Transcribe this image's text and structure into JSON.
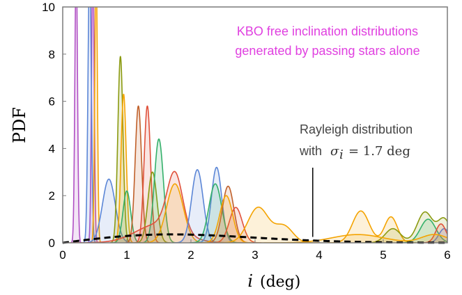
{
  "chart_data": {
    "type": "area",
    "xlabel_var": "i",
    "xlabel_unit": "(deg)",
    "ylabel": "PDF",
    "xlim": [
      0,
      6
    ],
    "ylim": [
      0,
      10
    ],
    "x_ticks": [
      0,
      1,
      2,
      3,
      4,
      5,
      6
    ],
    "y_ticks": [
      0,
      2,
      4,
      6,
      8,
      10
    ],
    "grid": false,
    "annotations": {
      "title_line1": "KBO free inclination distributions",
      "title_line2": "generated by passing stars alone",
      "title_color": "#e040e0",
      "rayleigh_line1": "Rayleigh distribution",
      "rayleigh_with": "with",
      "rayleigh_sigma": "σ",
      "rayleigh_sub": "i",
      "rayleigh_value": "= 1.7 deg",
      "rayleigh_pointer_x": 3.9
    },
    "rayleigh": {
      "sigma": 1.7,
      "color": "#000000",
      "style": "dashed"
    },
    "series": [
      {
        "color": "#b04fc4",
        "peaks": [
          [
            0.21,
            0.02,
            12
          ]
        ]
      },
      {
        "color": "#b04fc4",
        "peaks": [
          [
            0.47,
            0.02,
            12
          ]
        ]
      },
      {
        "color": "#5b86d6",
        "peaks": [
          [
            0.42,
            0.025,
            12
          ]
        ]
      },
      {
        "color": "#f4a300",
        "peaks": [
          [
            0.52,
            0.02,
            12
          ]
        ]
      },
      {
        "color": "#5b86d6",
        "peaks": [
          [
            0.72,
            0.1,
            2.7
          ]
        ]
      },
      {
        "color": "#8a9a10",
        "peaks": [
          [
            0.9,
            0.04,
            7.9
          ]
        ]
      },
      {
        "color": "#f4a300",
        "peaks": [
          [
            0.95,
            0.04,
            6.3
          ]
        ]
      },
      {
        "color": "#34b06a",
        "peaks": [
          [
            1.0,
            0.06,
            2.2
          ]
        ]
      },
      {
        "color": "#c0602a",
        "peaks": [
          [
            1.18,
            0.05,
            5.8
          ]
        ]
      },
      {
        "color": "#e0503a",
        "peaks": [
          [
            1.32,
            0.05,
            5.8
          ]
        ]
      },
      {
        "color": "#8a9a10",
        "peaks": [
          [
            1.4,
            0.07,
            3.0
          ]
        ]
      },
      {
        "color": "#34b06a",
        "peaks": [
          [
            1.5,
            0.07,
            4.4
          ]
        ]
      },
      {
        "color": "#e0503a",
        "peaks": [
          [
            1.5,
            0.35,
            0.8
          ],
          [
            1.75,
            0.12,
            2.4
          ]
        ]
      },
      {
        "color": "#f4a300",
        "peaks": [
          [
            1.75,
            0.13,
            2.5
          ]
        ]
      },
      {
        "color": "#5b86d6",
        "peaks": [
          [
            2.1,
            0.09,
            3.1
          ]
        ]
      },
      {
        "color": "#5b86d6",
        "peaks": [
          [
            2.4,
            0.08,
            3.2
          ]
        ]
      },
      {
        "color": "#34b06a",
        "peaks": [
          [
            2.38,
            0.1,
            2.5
          ]
        ]
      },
      {
        "color": "#c0602a",
        "peaks": [
          [
            2.58,
            0.09,
            2.4
          ]
        ]
      },
      {
        "color": "#e0503a",
        "peaks": [
          [
            2.7,
            0.1,
            1.5
          ]
        ]
      },
      {
        "color": "#f4a300",
        "peaks": [
          [
            2.55,
            0.1,
            2.0
          ]
        ]
      },
      {
        "color": "#f4a300",
        "peaks": [
          [
            3.05,
            0.16,
            1.5
          ],
          [
            3.45,
            0.14,
            0.7
          ]
        ]
      },
      {
        "color": "#f4a300",
        "peaks": [
          [
            4.65,
            0.13,
            1.35
          ],
          [
            5.12,
            0.1,
            1.1
          ]
        ]
      },
      {
        "color": "#8a9a10",
        "peaks": [
          [
            5.15,
            0.12,
            0.6
          ],
          [
            5.65,
            0.12,
            1.3
          ],
          [
            5.95,
            0.1,
            1.0
          ]
        ]
      },
      {
        "color": "#34b06a",
        "peaks": [
          [
            5.7,
            0.12,
            1.0
          ]
        ]
      },
      {
        "color": "#5b86d6",
        "peaks": [
          [
            5.95,
            0.08,
            0.6
          ]
        ]
      },
      {
        "color": "#e0503a",
        "peaks": [
          [
            5.9,
            0.08,
            0.8
          ]
        ]
      },
      {
        "color": "#f4a300",
        "peaks": [
          [
            4.6,
            0.4,
            0.35
          ],
          [
            5.8,
            0.2,
            0.35
          ]
        ]
      }
    ]
  }
}
